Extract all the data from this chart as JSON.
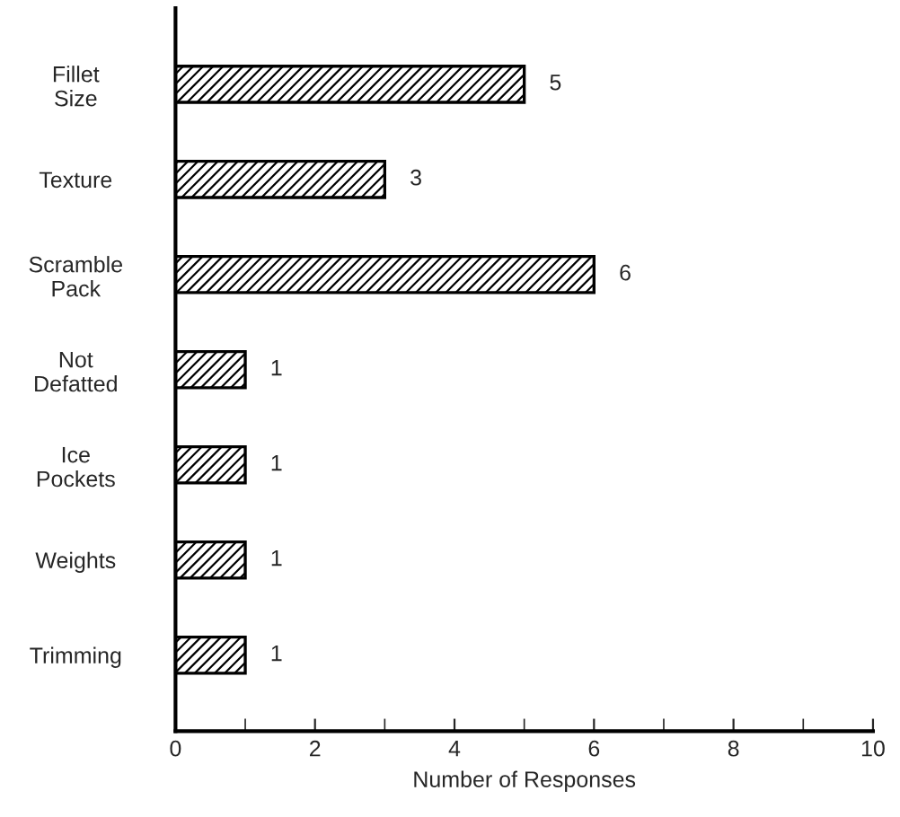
{
  "chart_data": {
    "type": "bar",
    "orientation": "horizontal",
    "xlabel": "Number of Responses",
    "categories": [
      "Fillet\nSize",
      "Texture",
      "Scramble\nPack",
      "Not\nDefatted",
      "Ice\nPockets",
      "Weights",
      "Trimming"
    ],
    "values": [
      5,
      3,
      6,
      1,
      1,
      1,
      1
    ],
    "color": "#000000",
    "data_labels": true,
    "xlim": [
      0,
      10
    ],
    "xticks": [
      0,
      2,
      4,
      6,
      8,
      10
    ],
    "grid": false,
    "legend": false
  }
}
